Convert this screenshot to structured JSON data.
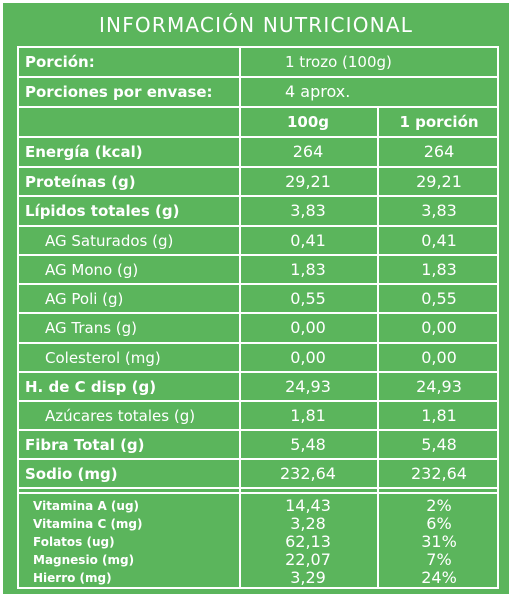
{
  "title": "INFORMACIÓN NUTRICIONAL",
  "serving": {
    "portion_label": "Porción:",
    "portion_value": "1 trozo (100g)",
    "per_container_label": "Porciones por envase:",
    "per_container_value": "4 aprox."
  },
  "columns": {
    "per100": "100g",
    "perPortion": "1 porción"
  },
  "rows": [
    {
      "label": "Energía (kcal)",
      "v100": "264",
      "vPortion": "264"
    },
    {
      "label": "Proteínas (g)",
      "v100": "29,21",
      "vPortion": "29,21"
    },
    {
      "label": "Lípidos totales (g)",
      "v100": "3,83",
      "vPortion": "3,83"
    },
    {
      "label": "AG Saturados (g)",
      "v100": "0,41",
      "vPortion": "0,41"
    },
    {
      "label": "AG Mono (g)",
      "v100": "1,83",
      "vPortion": "1,83"
    },
    {
      "label": "AG Poli (g)",
      "v100": "0,55",
      "vPortion": "0,55"
    },
    {
      "label": "AG Trans (g)",
      "v100": "0,00",
      "vPortion": "0,00"
    },
    {
      "label": "Colesterol (mg)",
      "v100": "0,00",
      "vPortion": "0,00"
    },
    {
      "label": "H. de C disp (g)",
      "v100": "24,93",
      "vPortion": "24,93"
    },
    {
      "label": "Azúcares totales (g)",
      "v100": "1,81",
      "vPortion": "1,81"
    },
    {
      "label": "Fibra Total (g)",
      "v100": "5,48",
      "vPortion": "5,48"
    },
    {
      "label": "Sodio (mg)",
      "v100": "232,64",
      "vPortion": "232,64"
    }
  ],
  "micros": [
    {
      "label": "Vitamina A (ug)",
      "v100": "14,43",
      "vPortion": "2%"
    },
    {
      "label": "Vitamina C (mg)",
      "v100": "3,28",
      "vPortion": "6%"
    },
    {
      "label": "Folatos (ug)",
      "v100": "62,13",
      "vPortion": "31%"
    },
    {
      "label": "Magnesio (mg)",
      "v100": "22,07",
      "vPortion": "7%"
    },
    {
      "label": "Hierro (mg)",
      "v100": "3,29",
      "vPortion": "24%"
    }
  ],
  "colors": {
    "background": "#5bb55c",
    "lines": "#ffffff",
    "text": "#ffffff"
  }
}
